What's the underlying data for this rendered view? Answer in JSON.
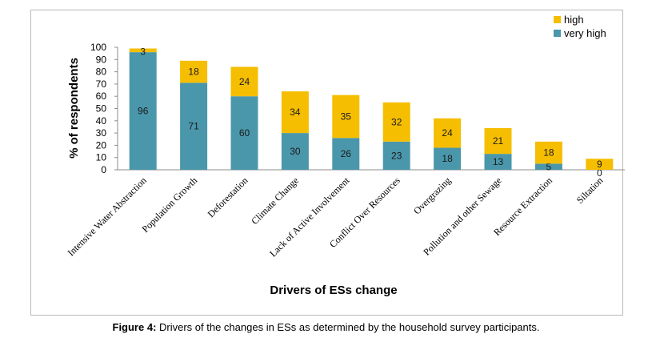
{
  "chart_data": {
    "type": "bar",
    "stacked": true,
    "categories": [
      "Intensive Water Abstraction",
      "Population Growth",
      "Deforestation",
      "Climate Change",
      "Lack of Active Involvement",
      "Conflict Over Resources",
      "Overgrazing",
      "Pollution and other Sewage",
      "Resource Extraction",
      "Siltation"
    ],
    "series": [
      {
        "name": "very high",
        "values": [
          96,
          71,
          60,
          30,
          26,
          23,
          18,
          13,
          5,
          0
        ]
      },
      {
        "name": "high",
        "values": [
          3,
          18,
          24,
          34,
          35,
          32,
          24,
          21,
          18,
          9
        ]
      }
    ],
    "xlabel": "Drivers of ESs change",
    "ylabel": "% of respondents",
    "ylim": [
      0,
      100
    ],
    "yticks": [
      0,
      10,
      20,
      30,
      40,
      50,
      60,
      70,
      80,
      90,
      100
    ],
    "grid": false,
    "legend_position": "top-right",
    "colors": {
      "very high": "#4a97ab",
      "high": "#f6be00"
    }
  },
  "caption": {
    "label": "Figure 4:",
    "text": " Drivers of the changes in ESs as determined by the household survey participants."
  }
}
